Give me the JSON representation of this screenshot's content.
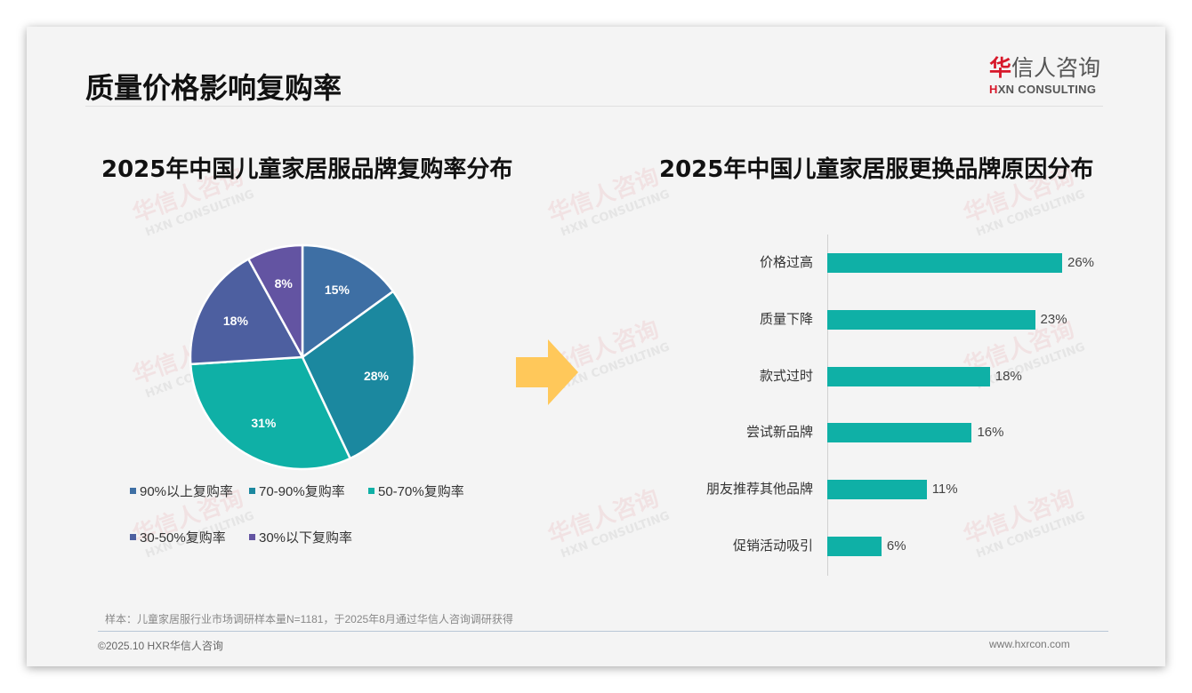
{
  "header": {
    "page_title": "质量价格影响复购率",
    "logo": {
      "cn_mark": "华",
      "cn_rest": "信人咨询",
      "en_mark": "H",
      "en_rest": "XN CONSULTING"
    }
  },
  "watermark": {
    "cn": "华信人咨询",
    "en": "HXN CONSULTING"
  },
  "left_chart": {
    "title": "2025年中国儿童家居服品牌复购率分布"
  },
  "right_chart": {
    "title": "2025年中国儿童家居服更换品牌原因分布"
  },
  "chart_data": [
    {
      "type": "pie",
      "title": "2025年中国儿童家居服品牌复购率分布",
      "categories": [
        "90%以上复购率",
        "70-90%复购率",
        "50-70%复购率",
        "30-50%复购率",
        "30%以下复购率"
      ],
      "values": [
        15,
        28,
        31,
        18,
        8
      ],
      "labels": [
        "15%",
        "28%",
        "31%",
        "18%",
        "8%"
      ],
      "colors": [
        "#3e6fa4",
        "#1b889f",
        "#0fb0a6",
        "#4d5fa0",
        "#6354a2"
      ],
      "start_angle": "12 o'clock, clockwise",
      "legend_position": "bottom"
    },
    {
      "type": "bar",
      "orientation": "horizontal",
      "title": "2025年中国儿童家居服更换品牌原因分布",
      "categories": [
        "价格过高",
        "质量下降",
        "款式过时",
        "尝试新品牌",
        "朋友推荐其他品牌",
        "促销活动吸引"
      ],
      "values": [
        26,
        23,
        18,
        16,
        11,
        6
      ],
      "labels": [
        "26%",
        "23%",
        "18%",
        "16%",
        "11%",
        "6%"
      ],
      "color": "#0fb0a6",
      "grid": false,
      "xlabel": "",
      "ylabel": ""
    }
  ],
  "arrow": {
    "color": "#ffc85a",
    "icon": "right-arrow"
  },
  "footer": {
    "source_note": "样本：儿童家居服行业市场调研样本量N=1181，于2025年8月通过华信人咨询调研获得",
    "copyright": "©2025.10 HXR华信人咨询",
    "website": "www.hxrcon.com"
  }
}
